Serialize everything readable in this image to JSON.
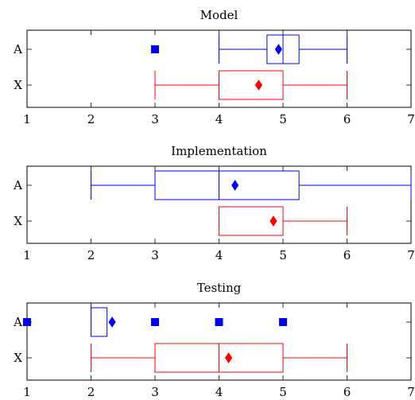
{
  "chart_data": [
    {
      "type": "boxplot",
      "title": "Model",
      "orientation": "horizontal",
      "xlim": [
        1,
        7
      ],
      "xticks": [
        "1",
        "2",
        "3",
        "4",
        "5",
        "6",
        "7"
      ],
      "categories": [
        "A",
        "X"
      ],
      "series": [
        {
          "category": "A",
          "color": "#0000ff",
          "whisker_low": 4,
          "q1": 4.75,
          "median": 5,
          "q3": 5.25,
          "whisker_high": 6,
          "mean": 4.93,
          "outliers": [
            3
          ]
        },
        {
          "category": "X",
          "color": "#ff0000",
          "whisker_low": 3,
          "q1": 4,
          "median": 5,
          "q3": 5,
          "whisker_high": 6,
          "mean": 4.62,
          "outliers": []
        }
      ]
    },
    {
      "type": "boxplot",
      "title": "Implementation",
      "orientation": "horizontal",
      "xlim": [
        1,
        7
      ],
      "xticks": [
        "1",
        "2",
        "3",
        "4",
        "5",
        "6",
        "7"
      ],
      "categories": [
        "A",
        "X"
      ],
      "series": [
        {
          "category": "A",
          "color": "#0000ff",
          "whisker_low": 2,
          "q1": 3,
          "median": 4,
          "q3": 5.25,
          "whisker_high": 7,
          "mean": 4.25,
          "outliers": []
        },
        {
          "category": "X",
          "color": "#ff0000",
          "whisker_low": 4,
          "q1": 4,
          "median": 4,
          "q3": 5,
          "whisker_high": 6,
          "mean": 4.85,
          "outliers": []
        }
      ]
    },
    {
      "type": "boxplot",
      "title": "Testing",
      "orientation": "horizontal",
      "xlim": [
        1,
        7
      ],
      "xticks": [
        "1",
        "2",
        "3",
        "4",
        "5",
        "6",
        "7"
      ],
      "categories": [
        "A",
        "X"
      ],
      "series": [
        {
          "category": "A",
          "color": "#0000ff",
          "whisker_low": 2,
          "q1": 2,
          "median": 2,
          "q3": 2.25,
          "whisker_high": 2.25,
          "mean": 2.33,
          "outliers": [
            1,
            3,
            4,
            5
          ]
        },
        {
          "category": "X",
          "color": "#ff0000",
          "whisker_low": 2,
          "q1": 3,
          "median": 4,
          "q3": 5,
          "whisker_high": 6,
          "mean": 4.15,
          "outliers": []
        }
      ]
    }
  ]
}
